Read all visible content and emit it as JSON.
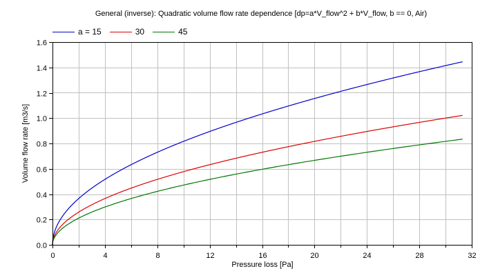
{
  "chart_data": {
    "type": "line",
    "title": "General (inverse): Quadratic volume flow rate dependence [dp=a*V_flow^2 + b*V_flow, b == 0, Air)",
    "xlabel": "Pressure loss [Pa]",
    "ylabel": "Volume flow rate [m3/s]",
    "xlim": [
      0,
      32
    ],
    "ylim": [
      0,
      1.6
    ],
    "x_ticks": [
      "0",
      "4",
      "8",
      "12",
      "16",
      "20",
      "24",
      "28",
      "32"
    ],
    "y_ticks": [
      "0.0",
      "0.2",
      "0.4",
      "0.6",
      "0.8",
      "1.0",
      "1.2",
      "1.4",
      "1.6"
    ],
    "grid": true,
    "legend_position": "top-left",
    "x": [
      0,
      0.5,
      1,
      2,
      4,
      6,
      8,
      10,
      12,
      14,
      16,
      18,
      20,
      22,
      24,
      26,
      28,
      30,
      31.3
    ],
    "series": [
      {
        "name": "a = 15",
        "color": "#0000cc",
        "a": 15,
        "values": [
          0,
          0.183,
          0.258,
          0.365,
          0.516,
          0.632,
          0.73,
          0.816,
          0.894,
          0.966,
          1.033,
          1.095,
          1.155,
          1.211,
          1.265,
          1.317,
          1.366,
          1.414,
          1.444
        ]
      },
      {
        "name": "30",
        "color": "#dd0000",
        "a": 30,
        "values": [
          0,
          0.129,
          0.183,
          0.258,
          0.365,
          0.447,
          0.516,
          0.577,
          0.632,
          0.683,
          0.73,
          0.775,
          0.816,
          0.856,
          0.894,
          0.931,
          0.966,
          1.0,
          1.021
        ]
      },
      {
        "name": "45",
        "color": "#007700",
        "a": 45,
        "values": [
          0,
          0.105,
          0.149,
          0.211,
          0.298,
          0.365,
          0.422,
          0.471,
          0.516,
          0.558,
          0.596,
          0.632,
          0.667,
          0.699,
          0.73,
          0.76,
          0.789,
          0.816,
          0.834
        ]
      }
    ]
  },
  "title": "General (inverse): Quadratic volume flow rate dependence [dp=a*V_flow^2 + b*V_flow, b == 0, Air)",
  "legend": [
    {
      "label": "a = 15",
      "color": "#0000cc"
    },
    {
      "label": "30",
      "color": "#dd0000"
    },
    {
      "label": "45",
      "color": "#007700"
    }
  ],
  "axes": {
    "xlabel": "Pressure loss [Pa]",
    "ylabel": "Volume flow rate [m3/s]"
  }
}
